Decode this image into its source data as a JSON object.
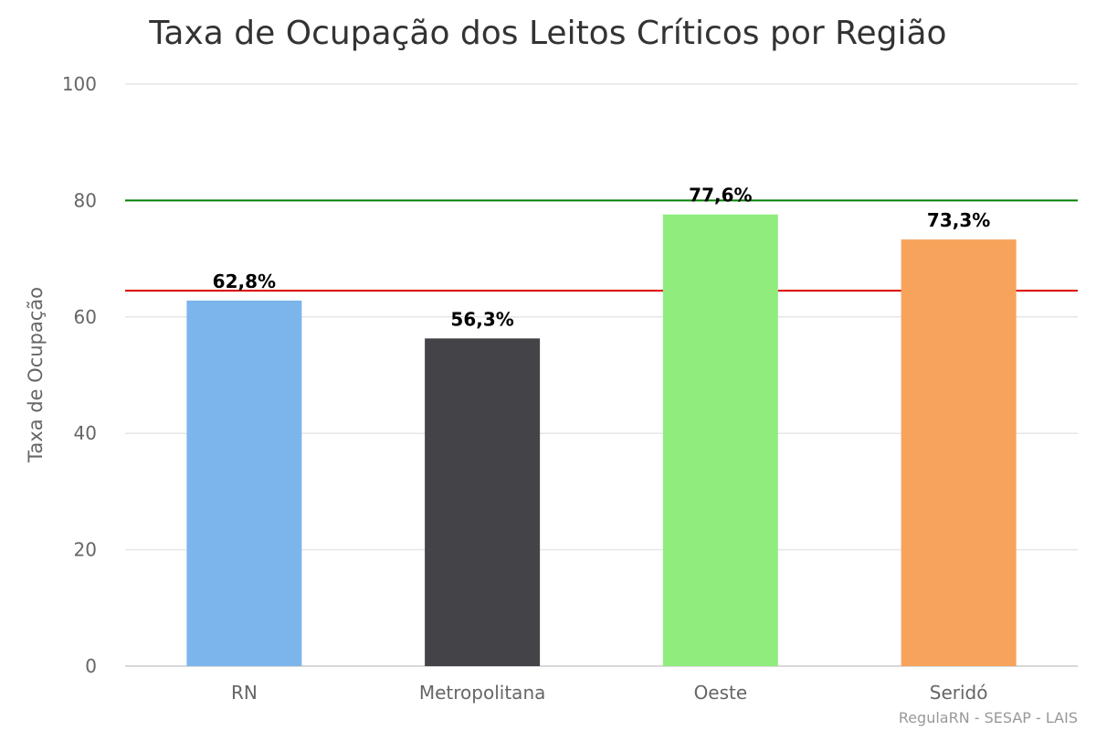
{
  "chart_data": {
    "type": "bar",
    "title": "Taxa de Ocupação dos Leitos Críticos por Região",
    "xlabel": "",
    "ylabel": "Taxa de Ocupação",
    "ylim": [
      0,
      100
    ],
    "yticks": [
      0,
      20,
      40,
      60,
      80,
      100
    ],
    "grid": true,
    "categories": [
      "RN",
      "Metropolitana",
      "Oeste",
      "Seridó"
    ],
    "values": [
      62.8,
      56.3,
      77.6,
      73.3
    ],
    "data_labels": [
      "62,8%",
      "56,3%",
      "77,6%",
      "73,3%"
    ],
    "bar_colors": [
      "#7cb5ec",
      "#434348",
      "#90ed7d",
      "#f7a35c"
    ],
    "reference_lines": [
      {
        "value": 80,
        "color": "#008000"
      },
      {
        "value": 64.5,
        "color": "#dd0000"
      }
    ],
    "credit": "RegulaRN - SESAP - LAIS"
  }
}
